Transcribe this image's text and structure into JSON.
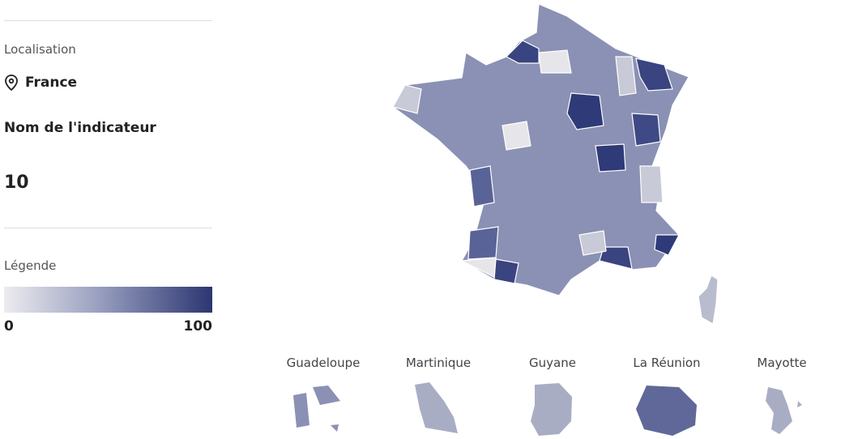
{
  "sidebar": {
    "location_label": "Localisation",
    "location": "France",
    "indicator_name": "Nom de l'indicateur",
    "indicator_value": 10,
    "legend_label": "Légende",
    "legend_min": 0,
    "legend_max": 100
  },
  "territories": [
    "Guadeloupe",
    "Martinique",
    "Guyane",
    "La Réunion",
    "Mayotte"
  ]
}
